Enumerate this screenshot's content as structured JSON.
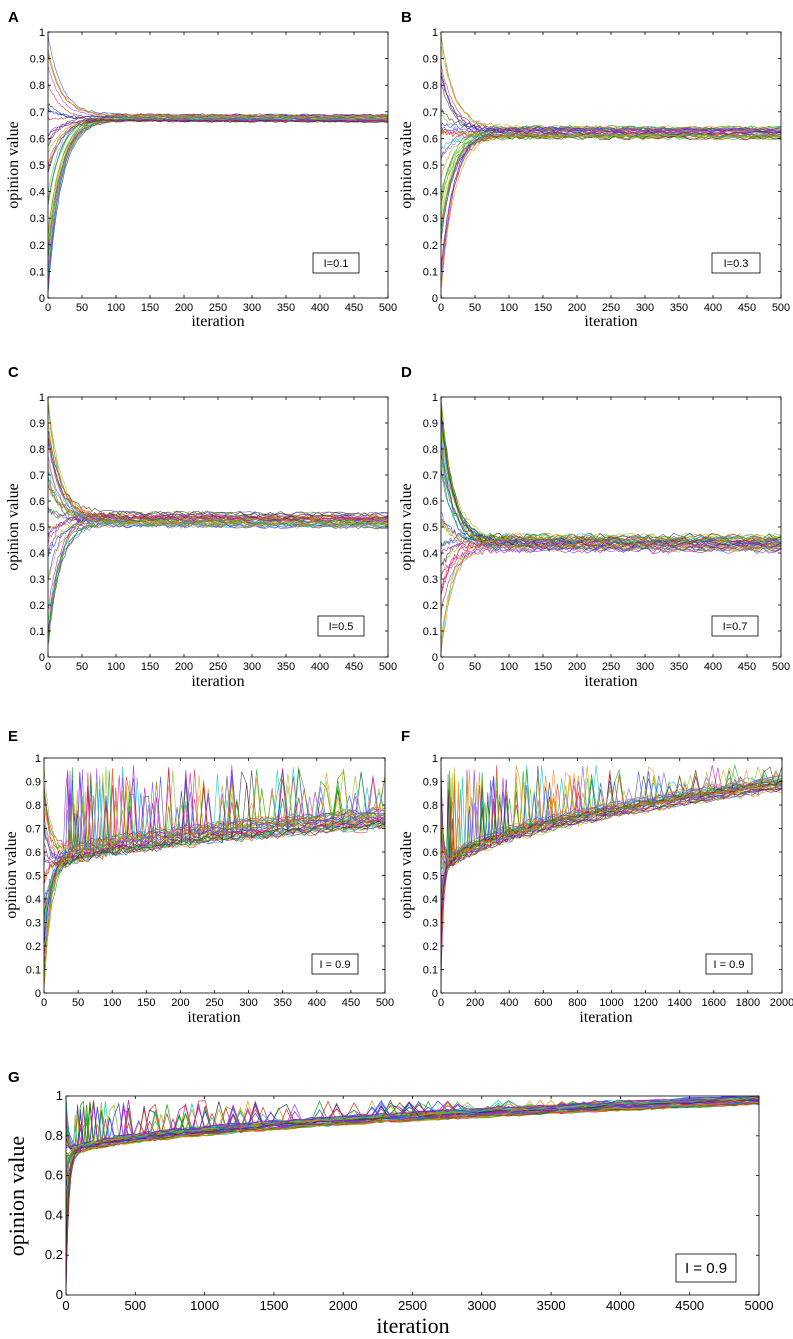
{
  "chart_data": [
    {
      "panel": "A",
      "type": "line",
      "xlabel": "iteration",
      "ylabel": "opinion value",
      "xlim": [
        0,
        500
      ],
      "ylim": [
        0,
        1
      ],
      "xticks": [
        0,
        50,
        100,
        150,
        200,
        250,
        300,
        350,
        400,
        450,
        500
      ],
      "yticks": [
        0,
        0.1,
        0.2,
        0.3,
        0.4,
        0.5,
        0.6,
        0.7,
        0.8,
        0.9,
        1
      ],
      "legend": "I=0.1",
      "legend_position": "bottom-right",
      "series_description": "many agents converging",
      "consensus": {
        "converge_iteration": 60,
        "level": 0.68,
        "level_end": 0.675,
        "spread": 0.012
      },
      "initial_range": [
        0,
        1
      ]
    },
    {
      "panel": "B",
      "type": "line",
      "xlabel": "iteration",
      "ylabel": "opinion value",
      "xlim": [
        0,
        500
      ],
      "ylim": [
        0,
        1
      ],
      "xticks": [
        0,
        50,
        100,
        150,
        200,
        250,
        300,
        350,
        400,
        450,
        500
      ],
      "yticks": [
        0,
        0.1,
        0.2,
        0.3,
        0.4,
        0.5,
        0.6,
        0.7,
        0.8,
        0.9,
        1
      ],
      "legend": "I=0.3",
      "legend_position": "bottom-right",
      "consensus": {
        "converge_iteration": 60,
        "level": 0.625,
        "level_end": 0.62,
        "spread": 0.02
      },
      "initial_range": [
        0,
        1
      ]
    },
    {
      "panel": "C",
      "type": "line",
      "xlabel": "iteration",
      "ylabel": "opinion value",
      "xlim": [
        0,
        500
      ],
      "ylim": [
        0,
        1
      ],
      "xticks": [
        0,
        50,
        100,
        150,
        200,
        250,
        300,
        350,
        400,
        450,
        500
      ],
      "yticks": [
        0,
        0.1,
        0.2,
        0.3,
        0.4,
        0.5,
        0.6,
        0.7,
        0.8,
        0.9,
        1
      ],
      "legend": "I=0.5",
      "legend_position": "bottom-right",
      "consensus": {
        "converge_iteration": 55,
        "level": 0.535,
        "level_end": 0.525,
        "spread": 0.025
      },
      "initial_range": [
        0,
        1
      ]
    },
    {
      "panel": "D",
      "type": "line",
      "xlabel": "iteration",
      "ylabel": "opinion value",
      "xlim": [
        0,
        500
      ],
      "ylim": [
        0,
        1
      ],
      "xticks": [
        0,
        50,
        100,
        150,
        200,
        250,
        300,
        350,
        400,
        450,
        500
      ],
      "yticks": [
        0,
        0.1,
        0.2,
        0.3,
        0.4,
        0.5,
        0.6,
        0.7,
        0.8,
        0.9,
        1
      ],
      "legend": "I=0.7",
      "legend_position": "bottom-right",
      "consensus": {
        "converge_iteration": 55,
        "level": 0.44,
        "level_end": 0.435,
        "spread": 0.03
      },
      "initial_range": [
        0,
        1
      ]
    },
    {
      "panel": "E",
      "type": "line",
      "xlabel": "iteration",
      "ylabel": "opinion value",
      "xlim": [
        0,
        500
      ],
      "ylim": [
        0,
        1
      ],
      "xticks": [
        0,
        50,
        100,
        150,
        200,
        250,
        300,
        350,
        400,
        450,
        500
      ],
      "yticks": [
        0,
        0.1,
        0.2,
        0.3,
        0.4,
        0.5,
        0.6,
        0.7,
        0.8,
        0.9,
        1
      ],
      "legend": "I = 0.9",
      "legend_position": "bottom-right",
      "consensus": {
        "converge_iteration": 30,
        "level": 0.53,
        "level_end": 0.74,
        "spread": 0.04
      },
      "spikes": {
        "max": 0.97
      },
      "initial_range": [
        0,
        1
      ]
    },
    {
      "panel": "F",
      "type": "line",
      "xlabel": "iteration",
      "ylabel": "opinion value",
      "xlim": [
        0,
        2000
      ],
      "ylim": [
        0,
        1
      ],
      "xticks": [
        0,
        200,
        400,
        600,
        800,
        1000,
        1200,
        1400,
        1600,
        1800,
        2000
      ],
      "yticks": [
        0,
        0.1,
        0.2,
        0.3,
        0.4,
        0.5,
        0.6,
        0.7,
        0.8,
        0.9,
        1
      ],
      "legend": "I = 0.9",
      "legend_position": "bottom-right",
      "consensus": {
        "converge_iteration": 40,
        "level": 0.5,
        "level_end": 0.89,
        "spread": 0.03
      },
      "spikes": {
        "max": 0.97
      },
      "initial_range": [
        0,
        1
      ]
    },
    {
      "panel": "G",
      "type": "line",
      "xlabel": "iteration",
      "ylabel": "opinion value",
      "xlim": [
        0,
        5000
      ],
      "ylim": [
        0,
        1
      ],
      "xticks": [
        0,
        500,
        1000,
        1500,
        2000,
        2500,
        3000,
        3500,
        4000,
        4500,
        5000
      ],
      "yticks": [
        0,
        0.2,
        0.4,
        0.6,
        0.8,
        1
      ],
      "legend": "I = 0.9",
      "legend_position": "bottom-right",
      "consensus": {
        "converge_iteration": 60,
        "level": 0.7,
        "level_end": 0.98,
        "spread": 0.02
      },
      "spikes": {
        "max": 0.98
      },
      "initial_range": [
        0,
        1
      ]
    }
  ],
  "colors": [
    "#1f3fff",
    "#00a000",
    "#e02020",
    "#00c0c0",
    "#c000c0",
    "#c0a000",
    "#303030",
    "#7fbf00",
    "#ff8000",
    "#8040ff"
  ]
}
